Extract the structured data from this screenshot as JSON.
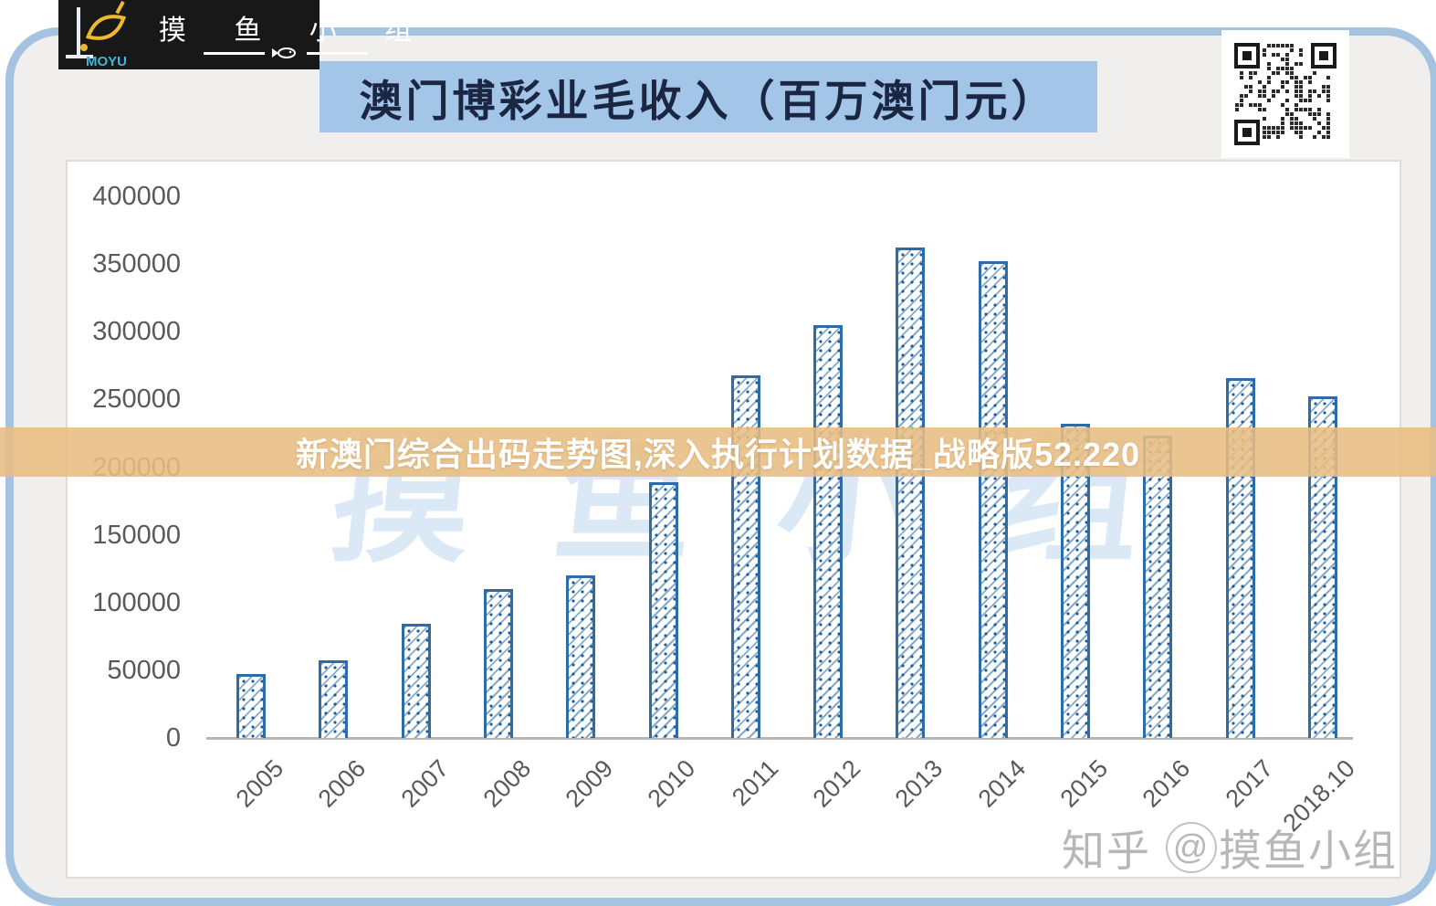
{
  "logo": {
    "brand": "MOYU",
    "group_name": "摸 鱼 小 组"
  },
  "header": {
    "title": "澳门博彩业毛收入（百万澳门元）"
  },
  "banner": {
    "text": "新澳门综合出码走势图,深入执行计划数据_战略版52.220"
  },
  "watermarks": {
    "plot_watermark": "摸鱼小组",
    "zhihu_brand": "知乎",
    "zhihu_at": "@",
    "zhihu_handle": "摸鱼小组"
  },
  "chart_data": {
    "type": "bar",
    "title": "澳门博彩业毛收入（百万澳门元）",
    "categories": [
      "2005",
      "2006",
      "2007",
      "2008",
      "2009",
      "2010",
      "2011",
      "2012",
      "2013",
      "2014",
      "2015",
      "2016",
      "2017",
      "2018.10"
    ],
    "values": [
      47000,
      57500,
      84000,
      110000,
      120000,
      189000,
      268000,
      305000,
      362000,
      352000,
      232000,
      223000,
      266000,
      252000
    ],
    "xlabel": "",
    "ylabel": "",
    "ylim": [
      0,
      400000
    ],
    "yticks": [
      400000,
      350000,
      300000,
      250000,
      200000,
      150000,
      100000,
      50000,
      0
    ],
    "grid": false,
    "legend": null,
    "bar_style": {
      "fill": "hatched-diagonal",
      "border_color": "#2e6ca8",
      "hatch_color": "#84aacd",
      "dot_color": "#1d5b97"
    }
  },
  "colors": {
    "frame_blue": "#a3c3e0",
    "inner_bg": "#f1efee",
    "title_highlight": "#a2c5e8",
    "title_text": "#1b2742",
    "banner_bg": "#e8bd82",
    "banner_text": "#ffffff",
    "axis_text": "#595959",
    "logo_bg": "#181818",
    "logo_yellow": "#ecba2c",
    "logo_cyan": "#3fb6dc",
    "watermark_blue": "#b9d3ec",
    "zhihu_gray": "#a6a6a6"
  }
}
